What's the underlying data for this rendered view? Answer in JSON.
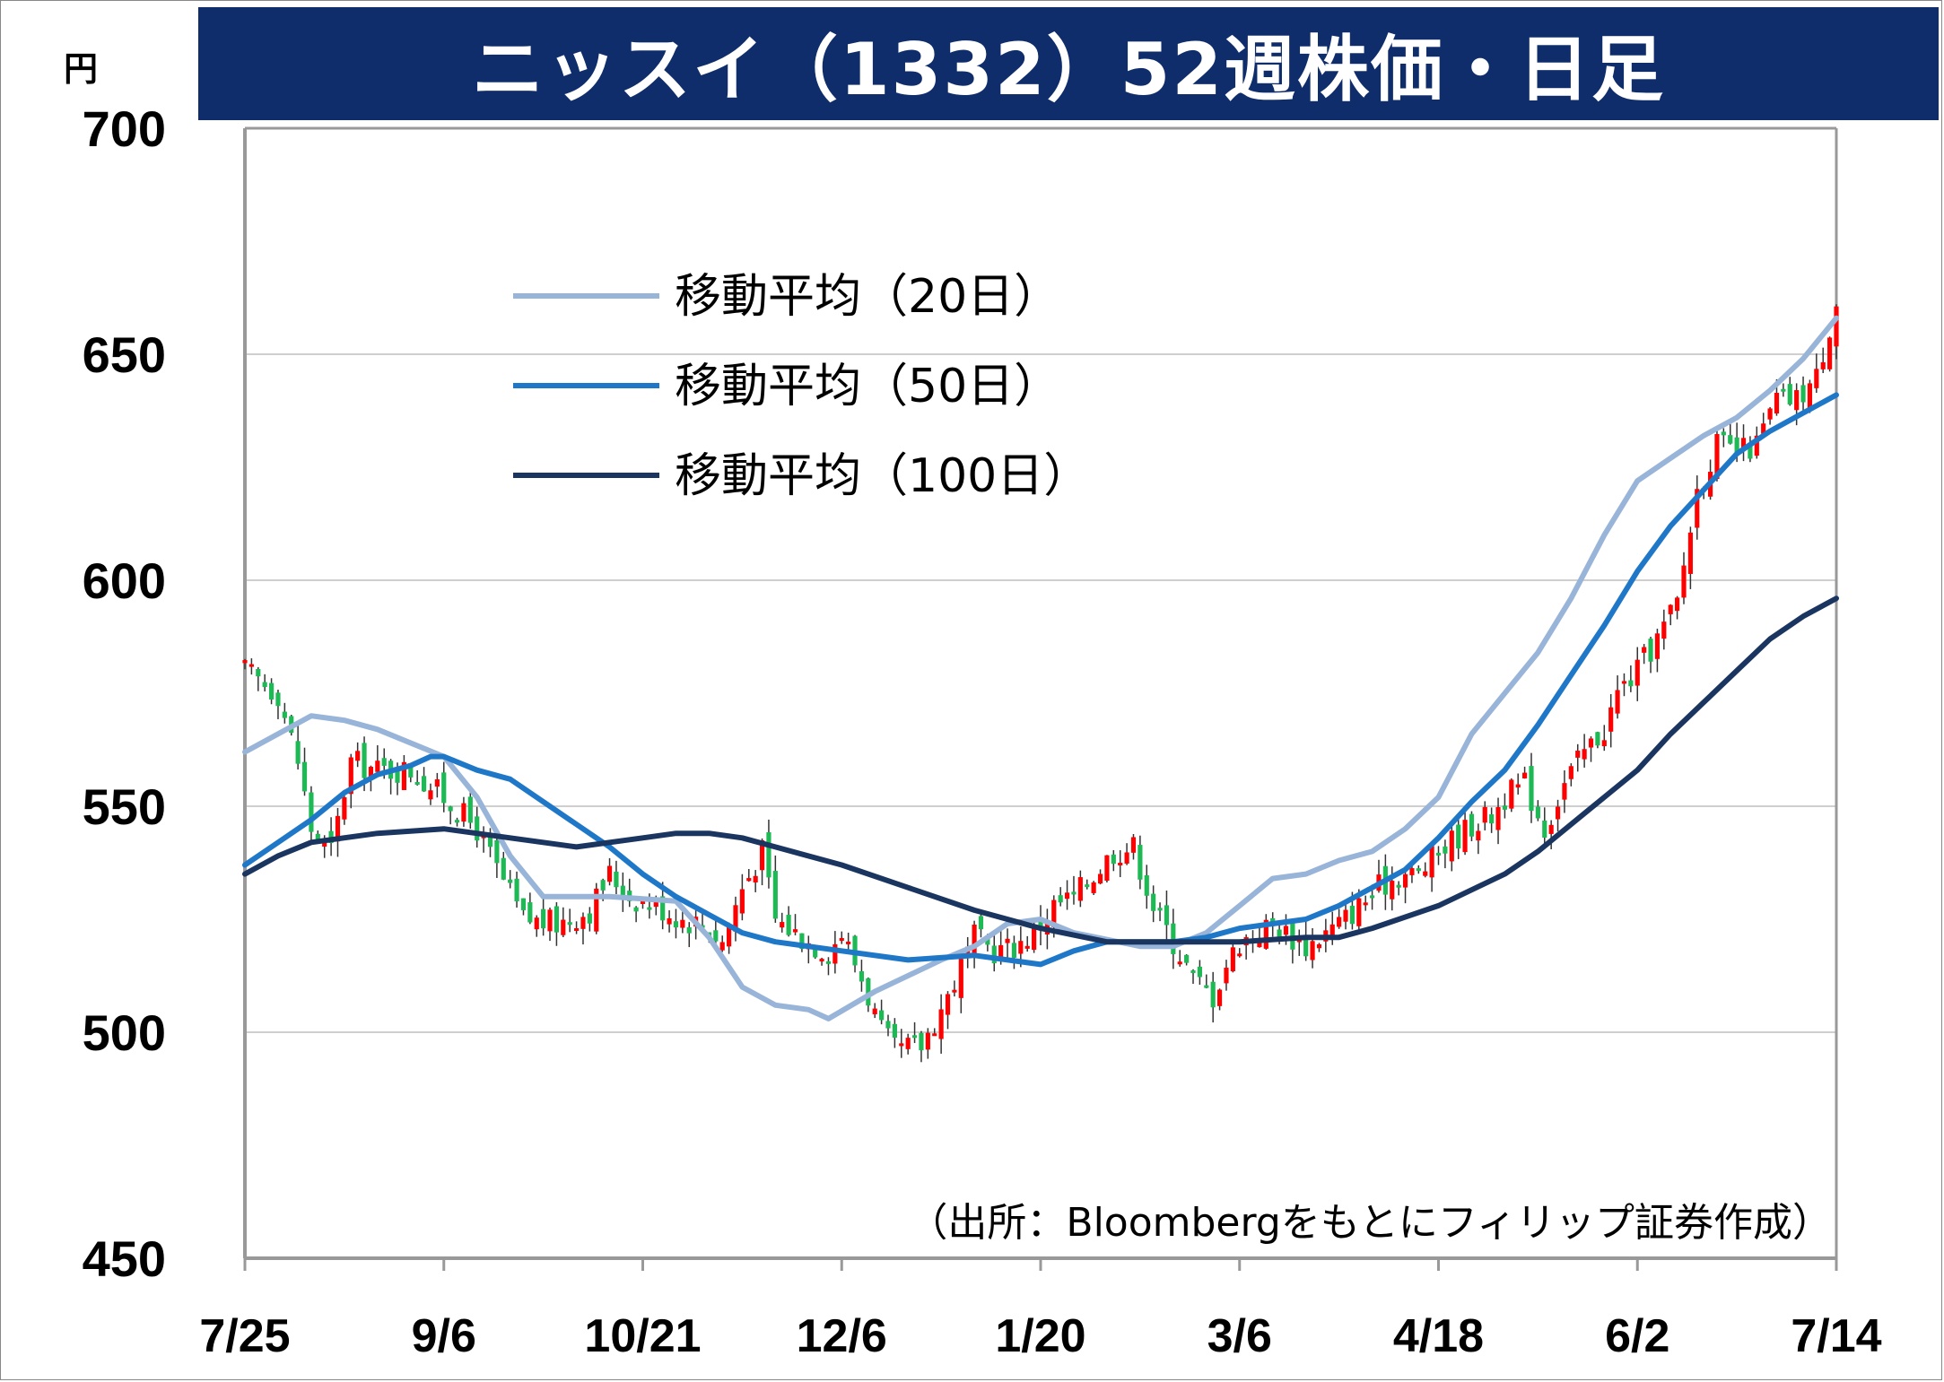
{
  "title": "ニッスイ（1332）52週株価・日足",
  "unit": "円",
  "source": "（出所：Bloombergをもとにフィリップ証券作成）",
  "colors": {
    "up": "#ff0000",
    "down": "#1db954",
    "ma20": "#98b4d8",
    "ma50": "#1f77c8",
    "ma100": "#1a3560",
    "grid": "#cfcfcf",
    "title_bg": "#0f2d6b"
  },
  "chart_data": {
    "type": "line",
    "title": "ニッスイ（1332）52週株価・日足",
    "ylabel": "円",
    "ylim": [
      450,
      700
    ],
    "yticks": [
      "700",
      "650",
      "600",
      "550",
      "500",
      "450"
    ],
    "x_tick_labels": [
      "7/25",
      "9/6",
      "10/21",
      "12/6",
      "1/20",
      "3/6",
      "4/18",
      "6/2",
      "7/14"
    ],
    "x_tick_index": [
      0,
      30,
      60,
      90,
      120,
      150,
      180,
      210,
      240
    ],
    "n_days": 241,
    "grid": "horizontal",
    "legend_position": "upper-left",
    "series": [
      {
        "name": "移動平均（20日）",
        "points": [
          [
            0,
            562
          ],
          [
            10,
            570
          ],
          [
            15,
            569
          ],
          [
            20,
            567
          ],
          [
            30,
            561
          ],
          [
            35,
            552
          ],
          [
            40,
            539
          ],
          [
            45,
            530
          ],
          [
            55,
            530
          ],
          [
            65,
            529
          ],
          [
            70,
            521
          ],
          [
            75,
            510
          ],
          [
            80,
            506
          ],
          [
            85,
            505
          ],
          [
            88,
            503
          ],
          [
            95,
            509
          ],
          [
            105,
            516
          ],
          [
            110,
            519
          ],
          [
            115,
            524
          ],
          [
            120,
            525
          ],
          [
            125,
            522
          ],
          [
            135,
            519
          ],
          [
            140,
            519
          ],
          [
            145,
            522
          ],
          [
            150,
            528
          ],
          [
            155,
            534
          ],
          [
            160,
            535
          ],
          [
            165,
            538
          ],
          [
            170,
            540
          ],
          [
            175,
            545
          ],
          [
            180,
            552
          ],
          [
            185,
            566
          ],
          [
            190,
            575
          ],
          [
            195,
            584
          ],
          [
            200,
            596
          ],
          [
            205,
            610
          ],
          [
            210,
            622
          ],
          [
            215,
            627
          ],
          [
            220,
            632
          ],
          [
            225,
            636
          ],
          [
            230,
            642
          ],
          [
            235,
            649
          ],
          [
            240,
            658
          ]
        ]
      },
      {
        "name": "移動平均（50日）",
        "points": [
          [
            0,
            537
          ],
          [
            5,
            542
          ],
          [
            10,
            547
          ],
          [
            15,
            553
          ],
          [
            20,
            557
          ],
          [
            25,
            559
          ],
          [
            28,
            561
          ],
          [
            30,
            561
          ],
          [
            35,
            558
          ],
          [
            40,
            556
          ],
          [
            45,
            551
          ],
          [
            50,
            546
          ],
          [
            55,
            541
          ],
          [
            60,
            535
          ],
          [
            65,
            530
          ],
          [
            70,
            526
          ],
          [
            75,
            522
          ],
          [
            80,
            520
          ],
          [
            90,
            518
          ],
          [
            100,
            516
          ],
          [
            110,
            517
          ],
          [
            120,
            515
          ],
          [
            125,
            518
          ],
          [
            130,
            520
          ],
          [
            140,
            520
          ],
          [
            145,
            521
          ],
          [
            150,
            523
          ],
          [
            155,
            524
          ],
          [
            160,
            525
          ],
          [
            165,
            528
          ],
          [
            170,
            532
          ],
          [
            175,
            536
          ],
          [
            180,
            543
          ],
          [
            185,
            551
          ],
          [
            190,
            558
          ],
          [
            195,
            568
          ],
          [
            200,
            579
          ],
          [
            205,
            590
          ],
          [
            210,
            602
          ],
          [
            215,
            612
          ],
          [
            220,
            620
          ],
          [
            225,
            628
          ],
          [
            230,
            633
          ],
          [
            235,
            637
          ],
          [
            240,
            641
          ]
        ]
      },
      {
        "name": "移動平均（100日）",
        "points": [
          [
            0,
            535
          ],
          [
            5,
            539
          ],
          [
            10,
            542
          ],
          [
            20,
            544
          ],
          [
            30,
            545
          ],
          [
            40,
            543
          ],
          [
            50,
            541
          ],
          [
            60,
            543
          ],
          [
            65,
            544
          ],
          [
            70,
            544
          ],
          [
            75,
            543
          ],
          [
            80,
            541
          ],
          [
            90,
            537
          ],
          [
            100,
            532
          ],
          [
            110,
            527
          ],
          [
            120,
            523
          ],
          [
            130,
            520
          ],
          [
            140,
            520
          ],
          [
            150,
            520
          ],
          [
            160,
            521
          ],
          [
            165,
            521
          ],
          [
            170,
            523
          ],
          [
            180,
            528
          ],
          [
            190,
            535
          ],
          [
            195,
            540
          ],
          [
            200,
            546
          ],
          [
            205,
            552
          ],
          [
            210,
            558
          ],
          [
            215,
            566
          ],
          [
            220,
            573
          ],
          [
            225,
            580
          ],
          [
            230,
            587
          ],
          [
            235,
            592
          ],
          [
            240,
            596
          ]
        ]
      }
    ],
    "candles_note": "daily OHLC candlesticks (up=red, down=green)",
    "candles_anchor_close": [
      [
        0,
        580
      ],
      [
        5,
        575
      ],
      [
        8,
        560
      ],
      [
        10,
        545
      ],
      [
        13,
        540
      ],
      [
        16,
        560
      ],
      [
        20,
        558
      ],
      [
        25,
        558
      ],
      [
        30,
        552
      ],
      [
        35,
        545
      ],
      [
        38,
        536
      ],
      [
        42,
        525
      ],
      [
        47,
        524
      ],
      [
        52,
        527
      ],
      [
        55,
        535
      ],
      [
        58,
        530
      ],
      [
        62,
        528
      ],
      [
        66,
        525
      ],
      [
        69,
        524
      ],
      [
        72,
        520
      ],
      [
        75,
        532
      ],
      [
        78,
        540
      ],
      [
        80,
        525
      ],
      [
        85,
        520
      ],
      [
        88,
        518
      ],
      [
        90,
        522
      ],
      [
        93,
        512
      ],
      [
        96,
        500
      ],
      [
        98,
        496
      ],
      [
        102,
        497
      ],
      [
        106,
        508
      ],
      [
        110,
        521
      ],
      [
        113,
        518
      ],
      [
        116,
        519
      ],
      [
        119,
        522
      ],
      [
        122,
        528
      ],
      [
        125,
        530
      ],
      [
        128,
        535
      ],
      [
        131,
        540
      ],
      [
        134,
        541
      ],
      [
        137,
        528
      ],
      [
        140,
        520
      ],
      [
        143,
        512
      ],
      [
        146,
        508
      ],
      [
        148,
        515
      ],
      [
        150,
        520
      ],
      [
        155,
        524
      ],
      [
        160,
        519
      ],
      [
        165,
        524
      ],
      [
        168,
        528
      ],
      [
        171,
        532
      ],
      [
        174,
        535
      ],
      [
        177,
        535
      ],
      [
        180,
        540
      ],
      [
        185,
        546
      ],
      [
        188,
        548
      ],
      [
        190,
        552
      ],
      [
        193,
        555
      ],
      [
        196,
        545
      ],
      [
        199,
        555
      ],
      [
        202,
        562
      ],
      [
        205,
        567
      ],
      [
        207,
        575
      ],
      [
        210,
        580
      ],
      [
        213,
        587
      ],
      [
        216,
        595
      ],
      [
        219,
        620
      ],
      [
        222,
        630
      ],
      [
        225,
        628
      ],
      [
        228,
        630
      ],
      [
        231,
        640
      ],
      [
        234,
        640
      ],
      [
        237,
        645
      ],
      [
        240,
        662
      ]
    ]
  }
}
